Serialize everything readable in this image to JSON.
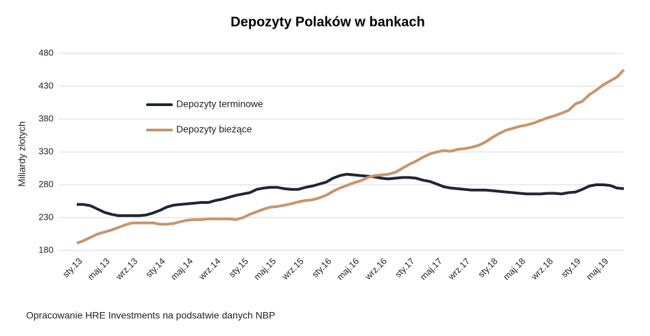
{
  "chart_data": {
    "type": "line",
    "title": "Depozyty Polaków w bankach",
    "ylabel": "Miliardy złotych",
    "source": "Opracowanie HRE Investments na podsatwie danych NBP",
    "categories": [
      "sty.13",
      null,
      null,
      null,
      "maj.13",
      null,
      null,
      null,
      "wrz.13",
      null,
      null,
      null,
      "sty.14",
      null,
      null,
      null,
      "maj.14",
      null,
      null,
      null,
      "wrz.14",
      null,
      null,
      null,
      "sty.15",
      null,
      null,
      null,
      "maj.15",
      null,
      null,
      null,
      "wrz.15",
      null,
      null,
      null,
      "sty.16",
      null,
      null,
      null,
      "maj.16",
      null,
      null,
      null,
      "wrz.16",
      null,
      null,
      null,
      "sty.17",
      null,
      null,
      null,
      "maj.17",
      null,
      null,
      null,
      "wrz.17",
      null,
      null,
      null,
      "sty.18",
      null,
      null,
      null,
      "maj.18",
      null,
      null,
      null,
      "wrz.18",
      null,
      null,
      null,
      "sty.19",
      null,
      null,
      null,
      "maj.19",
      null,
      null,
      null
    ],
    "series": [
      {
        "name": "Depozyty terminowe",
        "color": "#1f2537",
        "values": [
          250,
          250,
          248,
          243,
          238,
          235,
          233,
          233,
          233,
          233,
          234,
          237,
          241,
          246,
          249,
          250,
          251,
          252,
          253,
          253,
          256,
          258,
          261,
          264,
          266,
          268,
          273,
          275,
          276,
          276,
          274,
          273,
          273,
          276,
          278,
          281,
          284,
          290,
          294,
          296,
          295,
          294,
          293,
          292,
          290,
          289,
          290,
          291,
          291,
          290,
          287,
          285,
          281,
          277,
          275,
          274,
          273,
          272,
          272,
          272,
          271,
          270,
          269,
          268,
          267,
          266,
          266,
          266,
          267,
          267,
          266,
          268,
          269,
          273,
          278,
          280,
          280,
          279,
          275,
          274
        ]
      },
      {
        "name": "Depozyty bieżące",
        "color": "#c8956a",
        "values": [
          191,
          195,
          200,
          205,
          208,
          211,
          215,
          219,
          222,
          222,
          222,
          222,
          220,
          220,
          221,
          224,
          226,
          227,
          227,
          228,
          228,
          228,
          228,
          227,
          230,
          235,
          239,
          243,
          246,
          247,
          249,
          251,
          254,
          256,
          257,
          260,
          264,
          270,
          275,
          279,
          283,
          286,
          291,
          294,
          295,
          296,
          299,
          305,
          311,
          316,
          322,
          327,
          330,
          332,
          331,
          334,
          335,
          337,
          340,
          345,
          352,
          358,
          363,
          366,
          369,
          371,
          374,
          378,
          382,
          385,
          389,
          393,
          403,
          407,
          417,
          424,
          432,
          438,
          444,
          455
        ]
      }
    ],
    "ylim": [
      180,
      480
    ],
    "yticks": [
      180,
      230,
      280,
      330,
      380,
      430,
      480
    ],
    "grid": true,
    "legend": "upper left"
  }
}
